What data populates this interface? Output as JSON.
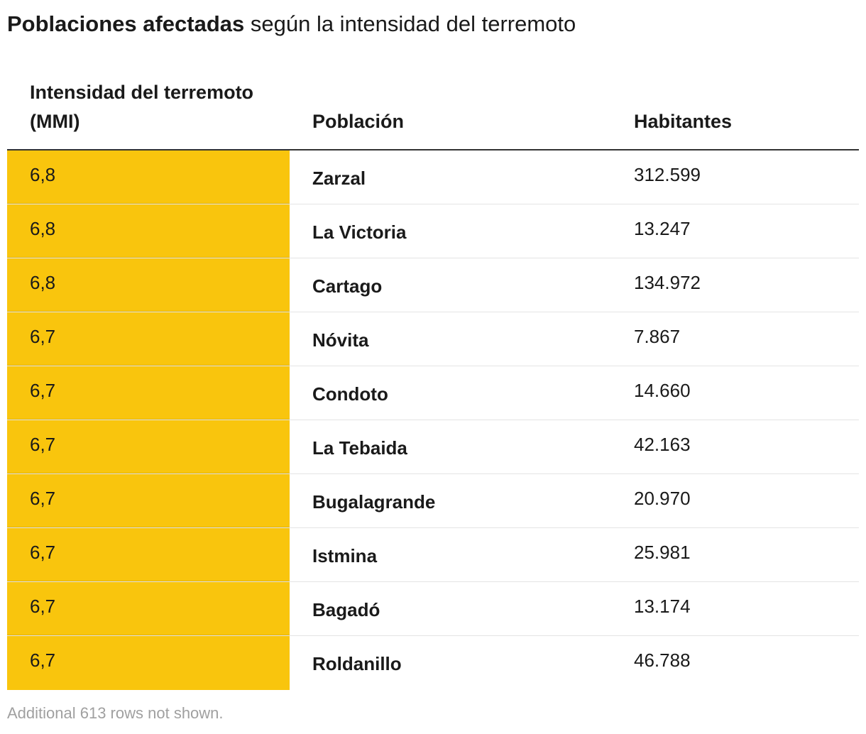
{
  "title": {
    "strong": "Poblaciones afectadas",
    "rest": " según la intensidad del terremoto"
  },
  "chart_data": {
    "type": "table",
    "columns": [
      "Intensidad del terremoto (MMI)",
      "Población",
      "Habitantes"
    ],
    "rows": [
      {
        "intensidad": "6,8",
        "poblacion": "Zarzal",
        "habitantes": "312.599"
      },
      {
        "intensidad": "6,8",
        "poblacion": "La Victoria",
        "habitantes": "13.247"
      },
      {
        "intensidad": "6,8",
        "poblacion": "Cartago",
        "habitantes": "134.972"
      },
      {
        "intensidad": "6,7",
        "poblacion": "Nóvita",
        "habitantes": "7.867"
      },
      {
        "intensidad": "6,7",
        "poblacion": "Condoto",
        "habitantes": "14.660"
      },
      {
        "intensidad": "6,7",
        "poblacion": "La Tebaida",
        "habitantes": "42.163"
      },
      {
        "intensidad": "6,7",
        "poblacion": "Bugalagrande",
        "habitantes": "20.970"
      },
      {
        "intensidad": "6,7",
        "poblacion": "Istmina",
        "habitantes": "25.981"
      },
      {
        "intensidad": "6,7",
        "poblacion": "Bagadó",
        "habitantes": "13.174"
      },
      {
        "intensidad": "6,7",
        "poblacion": "Roldanillo",
        "habitantes": "46.788"
      }
    ],
    "intensity_colors": {
      "6,8": "#f9c50d",
      "6,7": "#f9c50d"
    }
  },
  "footnote": "Additional 613 rows not shown."
}
